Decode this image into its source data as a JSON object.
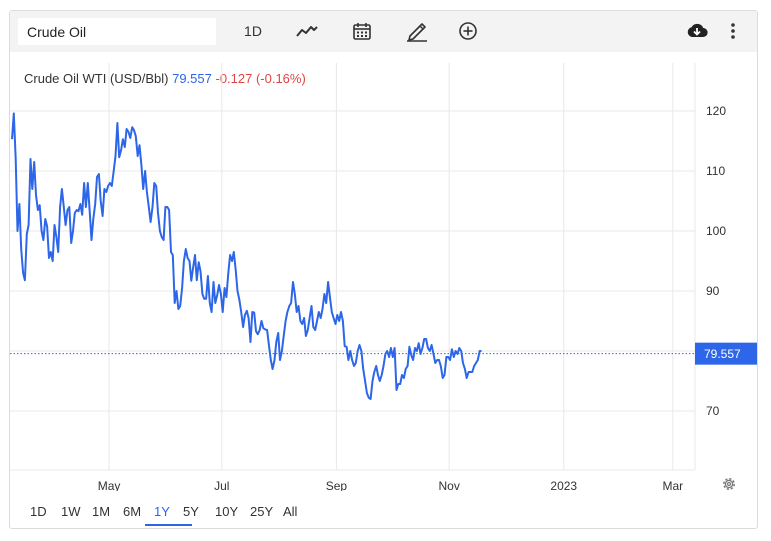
{
  "toolbar": {
    "search_value": "Crude Oil",
    "period": "1D",
    "icons": [
      "line-chart-icon",
      "calendar-icon",
      "pencil-icon",
      "plus-circle-icon",
      "cloud-download-icon",
      "more-vertical-icon"
    ]
  },
  "header": {
    "title": "Crude Oil WTI (USD/Bbl)",
    "price": "79.557",
    "change": "-0.127 (-0.16%)"
  },
  "colors": {
    "line": "#2d66e8",
    "negative": "#e04545",
    "grid": "#e8e8e8",
    "axis_text": "#333333"
  },
  "ranges": [
    "1D",
    "1W",
    "1M",
    "6M",
    "1Y",
    "5Y",
    "10Y",
    "25Y",
    "All"
  ],
  "active_range": "1Y",
  "chart_data": {
    "type": "line",
    "title": "Crude Oil WTI (USD/Bbl)",
    "xlabel": "",
    "ylabel": "",
    "grid": true,
    "x_tick_labels": [
      "May",
      "Jul",
      "Sep",
      "Nov",
      "2023",
      "Mar"
    ],
    "x_tick_positions": [
      -10.5,
      50.5,
      112.5,
      173.5,
      235.5,
      294.5
    ],
    "y_ticks": [
      70,
      80,
      90,
      100,
      110,
      120
    ],
    "y_tick_labels": [
      "70",
      "",
      "90",
      "100",
      "110",
      "120"
    ],
    "ylim": [
      60,
      122.5
    ],
    "xlim": [
      -63,
      300
    ],
    "last_value_label": "79.557",
    "last_value": 79.557,
    "series": [
      {
        "values": [
          [
            -63,
            115.3
          ],
          [
            -62,
            119.6
          ],
          [
            -61,
            112
          ],
          [
            -60,
            100
          ],
          [
            -59,
            104.5
          ],
          [
            -58,
            97
          ],
          [
            -57,
            93
          ],
          [
            -56,
            91.8
          ],
          [
            -55,
            99.5
          ],
          [
            -54,
            101
          ],
          [
            -53,
            112
          ],
          [
            -52,
            107
          ],
          [
            -51,
            111.5
          ],
          [
            -50,
            106
          ],
          [
            -49,
            103.5
          ],
          [
            -48,
            104.3
          ],
          [
            -47,
            100
          ],
          [
            -46,
            98.5
          ],
          [
            -45,
            102
          ],
          [
            -44,
            100.8
          ],
          [
            -43,
            95.5
          ],
          [
            -42,
            96.5
          ],
          [
            -41,
            95
          ],
          [
            -40,
            101
          ],
          [
            -39,
            99
          ],
          [
            -38,
            96.5
          ],
          [
            -37,
            104
          ],
          [
            -36,
            107
          ],
          [
            -35,
            104
          ],
          [
            -34,
            101
          ],
          [
            -33,
            103.5
          ],
          [
            -32,
            104
          ],
          [
            -31,
            98
          ],
          [
            -30,
            100
          ],
          [
            -29,
            103
          ],
          [
            -28,
            103.5
          ],
          [
            -27,
            103.3
          ],
          [
            -26,
            104.5
          ],
          [
            -25,
            102.7
          ],
          [
            -24,
            108
          ],
          [
            -23,
            104
          ],
          [
            -22,
            108
          ],
          [
            -21,
            103.5
          ],
          [
            -20,
            98.5
          ],
          [
            -19,
            102
          ],
          [
            -18,
            104.5
          ],
          [
            -17,
            109
          ],
          [
            -16,
            109.5
          ],
          [
            -15,
            105
          ],
          [
            -14,
            102.5
          ],
          [
            -13,
            107
          ],
          [
            -12,
            106.5
          ],
          [
            -11,
            107.5
          ],
          [
            -10,
            108
          ],
          [
            -9,
            107.5
          ],
          [
            -8,
            110
          ],
          [
            -7,
            112.5
          ],
          [
            -6,
            118
          ],
          [
            -5,
            112.3
          ],
          [
            -4,
            113.5
          ],
          [
            -3,
            115.3
          ],
          [
            -2,
            114
          ],
          [
            -1,
            117
          ],
          [
            0,
            116.5
          ],
          [
            1,
            115.5
          ],
          [
            2,
            117.3
          ],
          [
            3,
            116.8
          ],
          [
            4,
            115.8
          ],
          [
            5,
            112.5
          ],
          [
            6,
            114.3
          ],
          [
            7,
            111
          ],
          [
            8,
            107
          ],
          [
            9,
            110
          ],
          [
            10,
            106.5
          ],
          [
            11,
            104
          ],
          [
            12,
            101.5
          ],
          [
            13,
            104
          ],
          [
            14,
            108
          ],
          [
            15,
            107.5
          ],
          [
            16,
            103
          ],
          [
            17,
            100
          ],
          [
            18,
            99
          ],
          [
            19,
            98.5
          ],
          [
            20,
            104
          ],
          [
            21,
            104
          ],
          [
            22,
            103.5
          ],
          [
            23,
            96.5
          ],
          [
            24,
            96
          ],
          [
            25,
            88
          ],
          [
            26,
            90
          ],
          [
            27,
            87
          ],
          [
            28,
            87.5
          ],
          [
            29,
            90.5
          ],
          [
            30,
            95
          ],
          [
            31,
            97
          ],
          [
            32,
            95.5
          ],
          [
            33,
            95
          ],
          [
            34,
            91.7
          ],
          [
            35,
            94
          ],
          [
            36,
            96
          ],
          [
            37,
            91.8
          ],
          [
            38,
            94.8
          ],
          [
            39,
            93.3
          ],
          [
            40,
            89.5
          ],
          [
            41,
            88.7
          ],
          [
            42,
            88.7
          ],
          [
            43,
            92.5
          ],
          [
            44,
            88
          ],
          [
            45,
            86.5
          ],
          [
            46,
            91.5
          ],
          [
            47,
            88
          ],
          [
            48,
            89.3
          ],
          [
            49,
            91
          ],
          [
            50,
            89.5
          ],
          [
            51,
            86.5
          ],
          [
            52,
            90.5
          ],
          [
            53,
            89
          ],
          [
            54,
            93
          ],
          [
            55,
            96
          ],
          [
            56,
            95
          ],
          [
            57,
            96.5
          ],
          [
            58,
            93.5
          ],
          [
            59,
            90
          ],
          [
            60,
            88.5
          ],
          [
            61,
            86.5
          ],
          [
            62,
            84
          ],
          [
            63,
            86
          ],
          [
            64,
            86.7
          ],
          [
            65,
            85.5
          ],
          [
            66,
            81.5
          ],
          [
            67,
            86.5
          ],
          [
            68,
            86.4
          ],
          [
            69,
            83.3
          ],
          [
            70,
            82.8
          ],
          [
            71,
            83.5
          ],
          [
            72,
            85
          ],
          [
            73,
            83.8
          ],
          [
            74,
            83.6
          ],
          [
            75,
            83.5
          ],
          [
            76,
            81
          ],
          [
            77,
            78.5
          ],
          [
            78,
            77
          ],
          [
            79,
            78.5
          ],
          [
            80,
            81.5
          ],
          [
            81,
            83
          ],
          [
            82,
            78.5
          ],
          [
            83,
            80
          ],
          [
            84,
            82.5
          ],
          [
            85,
            85
          ],
          [
            86,
            86.5
          ],
          [
            87,
            87.5
          ],
          [
            88,
            88
          ],
          [
            89,
            91.5
          ],
          [
            90,
            89.5
          ],
          [
            91,
            86.5
          ],
          [
            92,
            87.5
          ],
          [
            93,
            85
          ],
          [
            94,
            84.5
          ],
          [
            95,
            85.5
          ],
          [
            96,
            82.5
          ],
          [
            97,
            83.5
          ],
          [
            98,
            85.5
          ],
          [
            99,
            87.5
          ],
          [
            100,
            84
          ],
          [
            101,
            83.5
          ],
          [
            102,
            85
          ],
          [
            103,
            86.5
          ],
          [
            104,
            85.5
          ],
          [
            105,
            87
          ],
          [
            106,
            89.5
          ],
          [
            107,
            88
          ],
          [
            108,
            91.5
          ],
          [
            109,
            89
          ],
          [
            110,
            86.5
          ],
          [
            111,
            85.5
          ],
          [
            112,
            84.5
          ],
          [
            113,
            86
          ],
          [
            114,
            85
          ],
          [
            115,
            86.5
          ],
          [
            116,
            85
          ],
          [
            117,
            80.8
          ],
          [
            118,
            80.7
          ],
          [
            119,
            78.5
          ],
          [
            120,
            80
          ],
          [
            121,
            78.5
          ],
          [
            122,
            77.5
          ],
          [
            123,
            78
          ],
          [
            124,
            80
          ],
          [
            125,
            81
          ],
          [
            126,
            80
          ],
          [
            127,
            77
          ],
          [
            128,
            75
          ],
          [
            129,
            73
          ],
          [
            130,
            72.2
          ],
          [
            131,
            72
          ],
          [
            132,
            75
          ],
          [
            133,
            76.5
          ],
          [
            134,
            77.5
          ],
          [
            135,
            76
          ],
          [
            136,
            75
          ],
          [
            137,
            76
          ],
          [
            138,
            77.5
          ],
          [
            139,
            79.5
          ],
          [
            140,
            80
          ],
          [
            141,
            79
          ],
          [
            142,
            80.5
          ],
          [
            143,
            79
          ],
          [
            144,
            80.5
          ],
          [
            145,
            73.5
          ],
          [
            146,
            74.5
          ],
          [
            147,
            74.5
          ],
          [
            148,
            76
          ],
          [
            149,
            75.5
          ],
          [
            150,
            77
          ],
          [
            151,
            77.5
          ],
          [
            152,
            80.7
          ],
          [
            153,
            79.3
          ],
          [
            154,
            78.5
          ],
          [
            155,
            80.5
          ],
          [
            156,
            80
          ],
          [
            157,
            81.3
          ],
          [
            158,
            79.5
          ],
          [
            159,
            80.5
          ],
          [
            160,
            82
          ],
          [
            161,
            82
          ],
          [
            162,
            80.5
          ],
          [
            163,
            80
          ],
          [
            164,
            81
          ],
          [
            165,
            79.5
          ],
          [
            166,
            78
          ],
          [
            167,
            78.5
          ],
          [
            168,
            78.5
          ],
          [
            169,
            77.5
          ],
          [
            170,
            75.5
          ],
          [
            171,
            76
          ],
          [
            172,
            79
          ],
          [
            173,
            79
          ],
          [
            174,
            78.5
          ],
          [
            175,
            80.3
          ],
          [
            176,
            79
          ],
          [
            177,
            80
          ],
          [
            178,
            79.5
          ],
          [
            179,
            80.5
          ],
          [
            180,
            80
          ],
          [
            181,
            78
          ],
          [
            182,
            77
          ],
          [
            183,
            75.5
          ],
          [
            184,
            76.5
          ],
          [
            185,
            76.5
          ],
          [
            186,
            76.5
          ],
          [
            187,
            77.5
          ],
          [
            188,
            78
          ],
          [
            189,
            78.5
          ],
          [
            190,
            80
          ],
          [
            191,
            80
          ]
        ]
      }
    ]
  }
}
